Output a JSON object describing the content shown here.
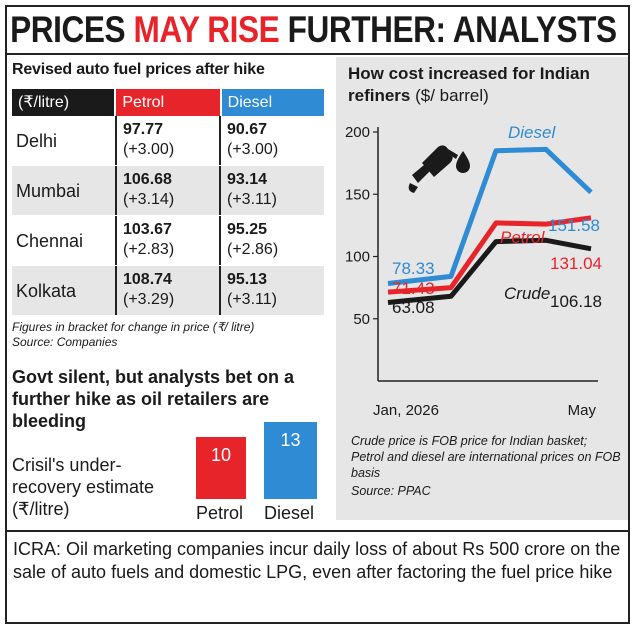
{
  "headline": {
    "part1": "PRICES ",
    "part2": "MAY RISE",
    "part3": " FURTHER: ANALYSTS"
  },
  "fuel_table": {
    "title": "Revised auto fuel prices after hike",
    "header_unit": "(₹/litre)",
    "header_petrol": "Petrol",
    "header_diesel": "Diesel",
    "rows": [
      {
        "city": "Delhi",
        "petrol": "97.77",
        "petrol_change": "(+3.00)",
        "diesel": "90.67",
        "diesel_change": "(+3.00)"
      },
      {
        "city": "Mumbai",
        "petrol": "106.68",
        "petrol_change": "(+3.14)",
        "diesel": "93.14",
        "diesel_change": "(+3.11)"
      },
      {
        "city": "Chennai",
        "petrol": "103.67",
        "petrol_change": "(+2.83)",
        "diesel": "95.25",
        "diesel_change": "(+2.86)"
      },
      {
        "city": "Kolkata",
        "petrol": "108.74",
        "petrol_change": "(+3.29)",
        "diesel": "95.13",
        "diesel_change": "(+3.11)"
      }
    ],
    "note": "Figures in bracket for change in price (₹/ litre)",
    "source": "Source: Companies"
  },
  "analysts": {
    "title": "Govt silent, but analysts bet on a further hike as oil retailers are bleeding",
    "crisil_label": "Crisil's under-recovery estimate (₹/litre)",
    "petrol_label": "Petrol",
    "diesel_label": "Diesel"
  },
  "icra_note": "ICRA: Oil marketing companies incur daily loss of about Rs 500 crore on the sale of auto fuels and domestic LPG, even after factoring the fuel price hike",
  "chart_title_main": "How cost increased for Indian refiners",
  "chart_title_unit": "($/ barrel)",
  "chart_note": "Crude price is FOB price for Indian basket; Petrol and diesel are international prices on FOB basis",
  "chart_source": "Source: PPAC",
  "colors": {
    "petrol": "#e8242b",
    "diesel": "#2e8bd4",
    "crude": "#1a1a1a",
    "panel_bg": "#e6e6e6"
  },
  "icons": [
    "fuel-nozzle-icon",
    "oil-drop-icon"
  ],
  "chart_data": [
    {
      "type": "line",
      "title": "How cost increased for Indian refiners ($/ barrel)",
      "x_labels": [
        "Jan, 2026",
        "May"
      ],
      "y_ticks": [
        50,
        100,
        150,
        200
      ],
      "ylim": [
        0,
        200
      ],
      "grid": false,
      "series": [
        {
          "name": "Diesel",
          "color": "#2e8bd4",
          "values": [
            78.33,
            84,
            185,
            186,
            151.58
          ],
          "start_label": "78.33",
          "end_label": "151.58"
        },
        {
          "name": "Petrol",
          "color": "#e8242b",
          "values": [
            71.43,
            75,
            127,
            126,
            131.04
          ],
          "start_label": "71.43",
          "end_label": "131.04"
        },
        {
          "name": "Crude",
          "color": "#1a1a1a",
          "values": [
            63.08,
            68,
            112,
            113,
            106.18
          ],
          "start_label": "63.08",
          "end_label": "106.18"
        }
      ]
    },
    {
      "type": "bar",
      "title": "Crisil's under-recovery estimate (₹/litre)",
      "categories": [
        "Petrol",
        "Diesel"
      ],
      "values": [
        10,
        13
      ],
      "colors": [
        "#e8242b",
        "#2e8bd4"
      ]
    }
  ]
}
